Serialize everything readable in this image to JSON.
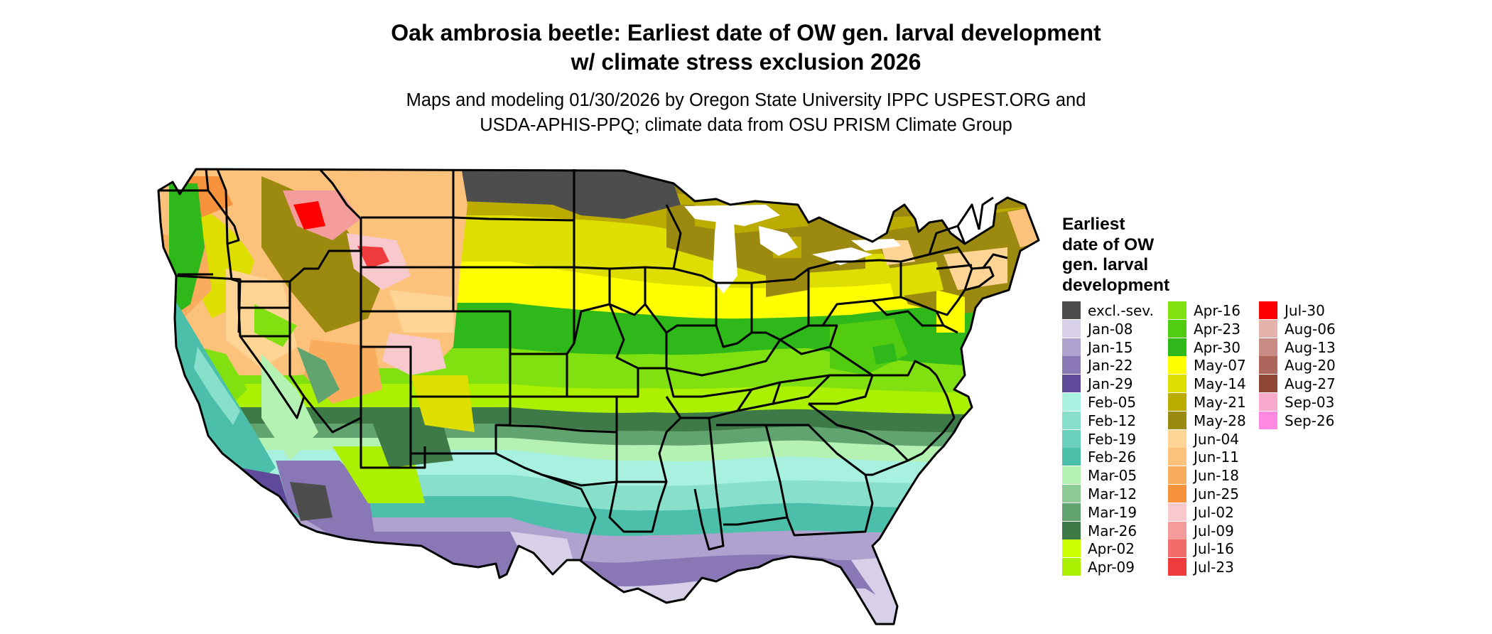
{
  "header": {
    "title_line1": "Oak ambrosia beetle: Earliest date of OW gen. larval development",
    "title_line2": "w/ climate stress exclusion 2026",
    "subtitle_line1": "Maps and modeling 01/30/2026 by Oregon State University IPPC USPEST.ORG and",
    "subtitle_line2": "USDA-APHIS-PPQ; climate data from OSU PRISM Climate Group"
  },
  "legend": {
    "title_line1": "Earliest",
    "title_line2": "date of OW",
    "title_line3": "gen. larval",
    "title_line4": "development",
    "items": [
      {
        "label": "excl.-sev.",
        "color": "#4d4d4d"
      },
      {
        "label": "Jan-08",
        "color": "#d8d0e8"
      },
      {
        "label": "Jan-15",
        "color": "#b0a2cf"
      },
      {
        "label": "Jan-22",
        "color": "#8978b5"
      },
      {
        "label": "Jan-29",
        "color": "#5e4a99"
      },
      {
        "label": "Feb-05",
        "color": "#a8f0e0"
      },
      {
        "label": "Feb-12",
        "color": "#88e0cc"
      },
      {
        "label": "Feb-19",
        "color": "#6ad0bc"
      },
      {
        "label": "Feb-26",
        "color": "#4cbfaa"
      },
      {
        "label": "Mar-05",
        "color": "#b4f2b4"
      },
      {
        "label": "Mar-12",
        "color": "#8ccc94"
      },
      {
        "label": "Mar-19",
        "color": "#62a470"
      },
      {
        "label": "Mar-26",
        "color": "#3e7a48"
      },
      {
        "label": "Apr-02",
        "color": "#ccff00"
      },
      {
        "label": "Apr-09",
        "color": "#aaf000"
      },
      {
        "label": "Apr-16",
        "color": "#80e010"
      },
      {
        "label": "Apr-23",
        "color": "#52cc10"
      },
      {
        "label": "Apr-30",
        "color": "#2eb81a"
      },
      {
        "label": "May-07",
        "color": "#ffff00"
      },
      {
        "label": "May-14",
        "color": "#dede00"
      },
      {
        "label": "May-21",
        "color": "#bcac00"
      },
      {
        "label": "May-28",
        "color": "#9c8a10"
      },
      {
        "label": "Jun-04",
        "color": "#ffd494"
      },
      {
        "label": "Jun-11",
        "color": "#fcc27c"
      },
      {
        "label": "Jun-18",
        "color": "#f9ac5c"
      },
      {
        "label": "Jun-25",
        "color": "#f7923c"
      },
      {
        "label": "Jul-02",
        "color": "#f7c8cc"
      },
      {
        "label": "Jul-09",
        "color": "#f49c9c"
      },
      {
        "label": "Jul-16",
        "color": "#f26c6c"
      },
      {
        "label": "Jul-23",
        "color": "#f03c3c"
      },
      {
        "label": "Jul-30",
        "color": "#ff0000"
      },
      {
        "label": "Aug-06",
        "color": "#e4b4ac"
      },
      {
        "label": "Aug-13",
        "color": "#c88c84"
      },
      {
        "label": "Aug-20",
        "color": "#ac665c"
      },
      {
        "label": "Aug-27",
        "color": "#904634"
      },
      {
        "label": "Sep-03",
        "color": "#f8aacc"
      },
      {
        "label": "Sep-26",
        "color": "#ff88e0"
      }
    ]
  }
}
